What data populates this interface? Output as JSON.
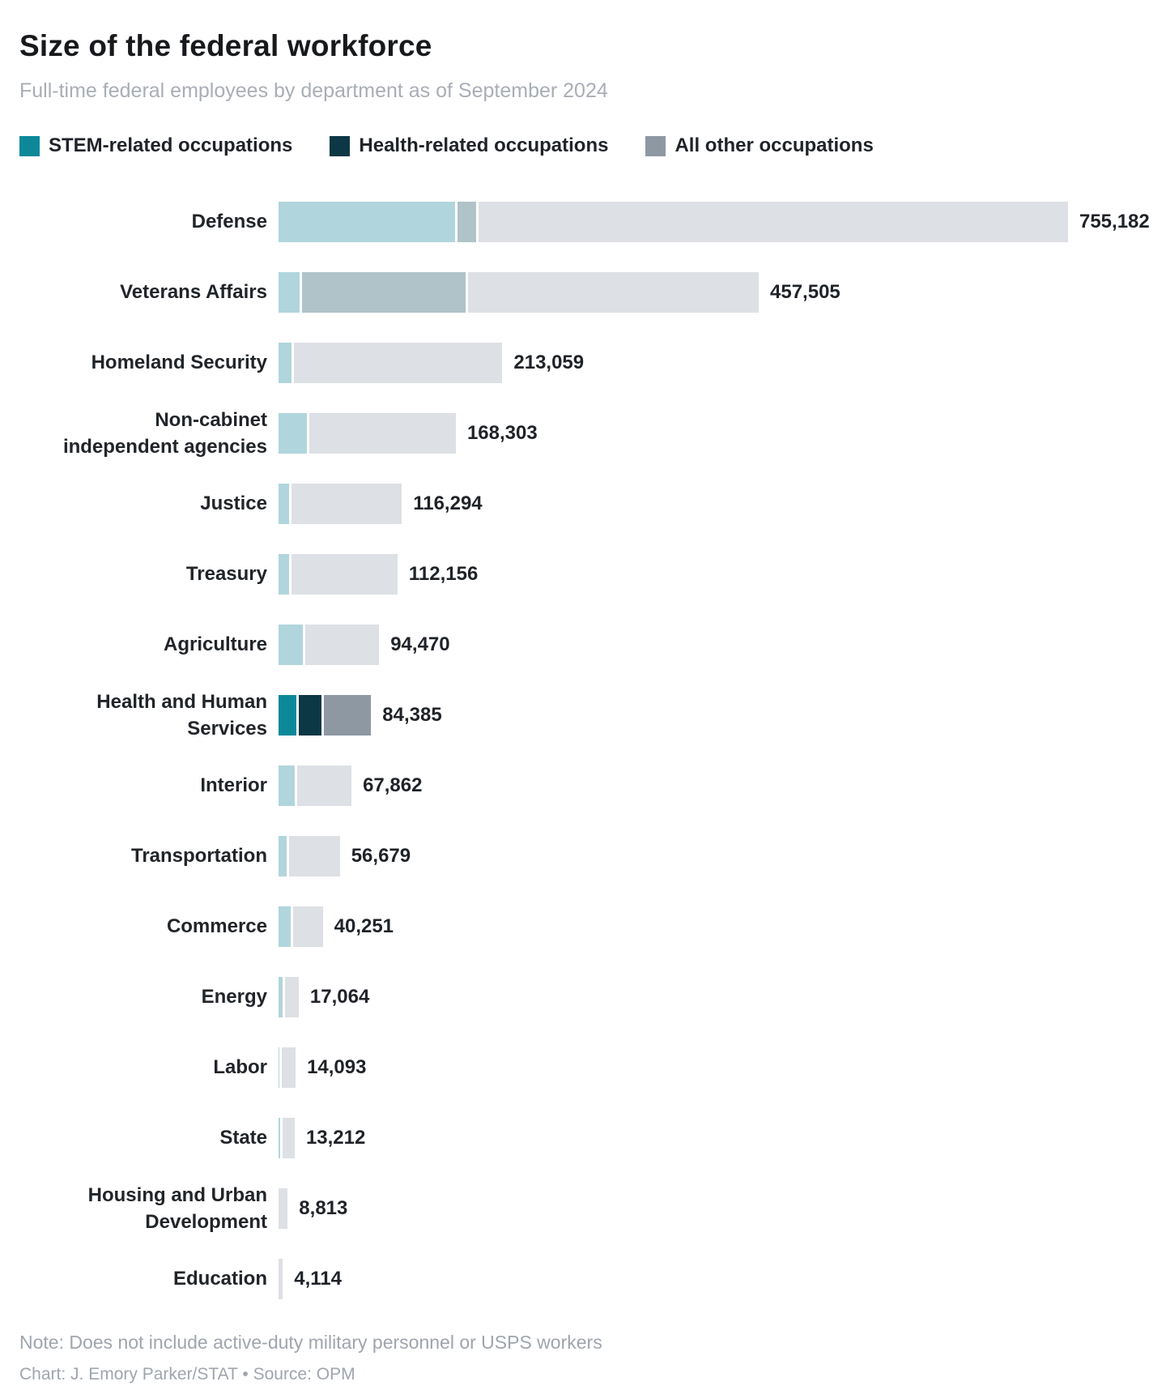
{
  "header": {
    "title": "Size of the federal workforce",
    "subtitle": "Full-time federal employees by department as of September 2024"
  },
  "legend": {
    "items": [
      {
        "key": "stem",
        "label": "STEM-related occupations"
      },
      {
        "key": "health",
        "label": "Health-related occupations"
      },
      {
        "key": "other",
        "label": "All other occupations"
      }
    ]
  },
  "colors": {
    "vivid": {
      "stem": "#0c8899",
      "health": "#0c3745",
      "other": "#8d98a3"
    },
    "faded": {
      "stem": "#b1d5dc",
      "health": "#b0c3c8",
      "other": "#dde0e4"
    }
  },
  "row_labels": [
    "Defense",
    "Veterans Affairs",
    "Homeland Security",
    "Non-cabinet\nindependent agencies",
    "Justice",
    "Treasury",
    "Agriculture",
    "Health and Human\nServices",
    "Interior",
    "Transportation",
    "Commerce",
    "Energy",
    "Labor",
    "State",
    "Housing and Urban\nDevelopment",
    "Education"
  ],
  "chart_data": {
    "type": "bar",
    "stacked": true,
    "orientation": "horizontal",
    "title": "Size of the federal workforce",
    "subtitle": "Full-time federal employees by department as of September 2024",
    "legend_position": "top",
    "grid": false,
    "axis_max": 755182,
    "highlighted_category": "Health and Human Services",
    "categories": [
      "Defense",
      "Veterans Affairs",
      "Homeland Security",
      "Non-cabinet independent agencies",
      "Justice",
      "Treasury",
      "Agriculture",
      "Health and Human Services",
      "Interior",
      "Transportation",
      "Commerce",
      "Energy",
      "Labor",
      "State",
      "Housing and Urban Development",
      "Education"
    ],
    "series": [
      {
        "name": "STEM-related occupations",
        "values": [
          170000,
          20300,
          12500,
          27300,
          10100,
          10100,
          23400,
          17000,
          15600,
          7800,
          11700,
          3900,
          700,
          1600,
          0,
          0
        ]
      },
      {
        "name": "Health-related occupations",
        "values": [
          18000,
          157400,
          0,
          0,
          0,
          0,
          0,
          22000,
          0,
          0,
          0,
          0,
          0,
          0,
          0,
          0
        ]
      },
      {
        "name": "All other occupations",
        "values": [
          567182,
          279805,
          200559,
          141003,
          106194,
          102056,
          71070,
          45385,
          52262,
          48879,
          28551,
          13164,
          13393,
          11612,
          8813,
          4114
        ]
      }
    ],
    "totals": [
      755182,
      457505,
      213059,
      168303,
      116294,
      112156,
      94470,
      84385,
      67862,
      56679,
      40251,
      17064,
      14093,
      13212,
      8813,
      4114
    ],
    "total_labels": [
      "755,182",
      "457,505",
      "213,059",
      "168,303",
      "116,294",
      "112,156",
      "94,470",
      "84,385",
      "67,862",
      "56,679",
      "40,251",
      "17,064",
      "14,093",
      "13,212",
      "8,813",
      "4,114"
    ]
  },
  "footer": {
    "note": "Note: Does not include active-duty military personnel or USPS workers",
    "credit": "Chart: J. Emory Parker/STAT • Source: OPM"
  }
}
